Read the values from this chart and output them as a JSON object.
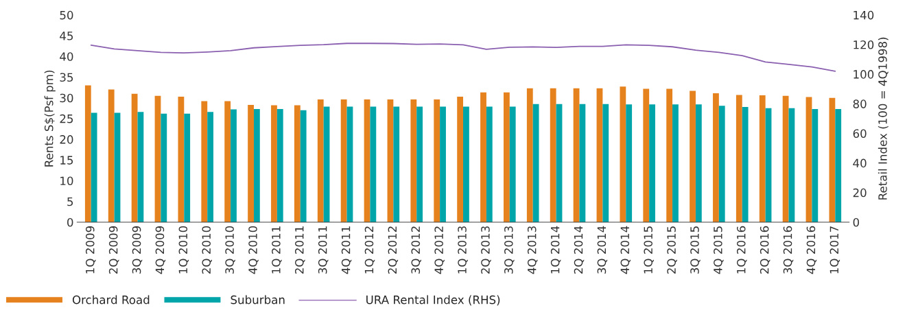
{
  "chart_data": {
    "type": "bar",
    "ylabel": "Rents S$(Psf pm)",
    "y2label": "Retail Index (100 = 4Q1998)",
    "categories": [
      "1Q 2009",
      "2Q 2009",
      "3Q 2009",
      "4Q 2009",
      "1Q 2010",
      "2Q 2010",
      "3Q 2010",
      "4Q 2010",
      "1Q 2011",
      "2Q 2011",
      "3Q 2011",
      "4Q 2011",
      "1Q 2012",
      "2Q 2012",
      "3Q 2012",
      "4Q 2012",
      "1Q 2013",
      "2Q 2013",
      "3Q 2013",
      "4Q 2013",
      "1Q 2014",
      "2Q 2014",
      "3Q 2014",
      "4Q 2014",
      "1Q 2015",
      "2Q 2015",
      "3Q 2015",
      "4Q 2015",
      "1Q 2016",
      "2Q 2016",
      "3Q 2016",
      "4Q 2016",
      "1Q 2017"
    ],
    "series": [
      {
        "name": "Orchard Road",
        "color": "#e6821e",
        "values": [
          33.0,
          32.0,
          31.0,
          30.5,
          30.3,
          29.2,
          29.2,
          28.3,
          28.2,
          28.2,
          29.6,
          29.6,
          29.6,
          29.6,
          29.6,
          29.6,
          30.3,
          31.3,
          31.3,
          32.3,
          32.3,
          32.3,
          32.3,
          32.7,
          32.2,
          32.2,
          31.7,
          31.1,
          30.7,
          30.6,
          30.5,
          30.2,
          30.0
        ]
      },
      {
        "name": "Suburban",
        "color": "#00a5aa",
        "values": [
          26.4,
          26.4,
          26.6,
          26.2,
          26.2,
          26.6,
          27.2,
          27.3,
          27.3,
          27.0,
          27.9,
          27.9,
          27.9,
          27.9,
          27.9,
          27.9,
          27.9,
          27.9,
          27.9,
          28.5,
          28.5,
          28.5,
          28.5,
          28.4,
          28.4,
          28.4,
          28.4,
          28.1,
          27.8,
          27.5,
          27.5,
          27.3,
          27.3
        ]
      },
      {
        "name": "URA Rental Index (RHS)",
        "type": "line",
        "axis": "y2",
        "color": "#8a5fb0",
        "values": [
          119.6,
          117,
          115.9,
          114.7,
          114.4,
          115,
          115.9,
          117.8,
          118.7,
          119.5,
          119.9,
          120.8,
          120.8,
          120.7,
          120.2,
          120.4,
          119.8,
          116.8,
          118.2,
          118.4,
          118.1,
          118.8,
          118.8,
          119.8,
          119.5,
          118.5,
          116.2,
          114.7,
          112.5,
          108.2,
          106.6,
          104.9,
          102
        ]
      }
    ],
    "ylim": [
      0,
      50
    ],
    "yticks": [
      0,
      5,
      10,
      15,
      20,
      25,
      30,
      35,
      40,
      45,
      50
    ],
    "y2lim": [
      0,
      140
    ],
    "y2ticks": [
      0,
      20,
      40,
      60,
      80,
      100,
      120,
      140
    ],
    "grid": false,
    "legend": "bottom left"
  }
}
